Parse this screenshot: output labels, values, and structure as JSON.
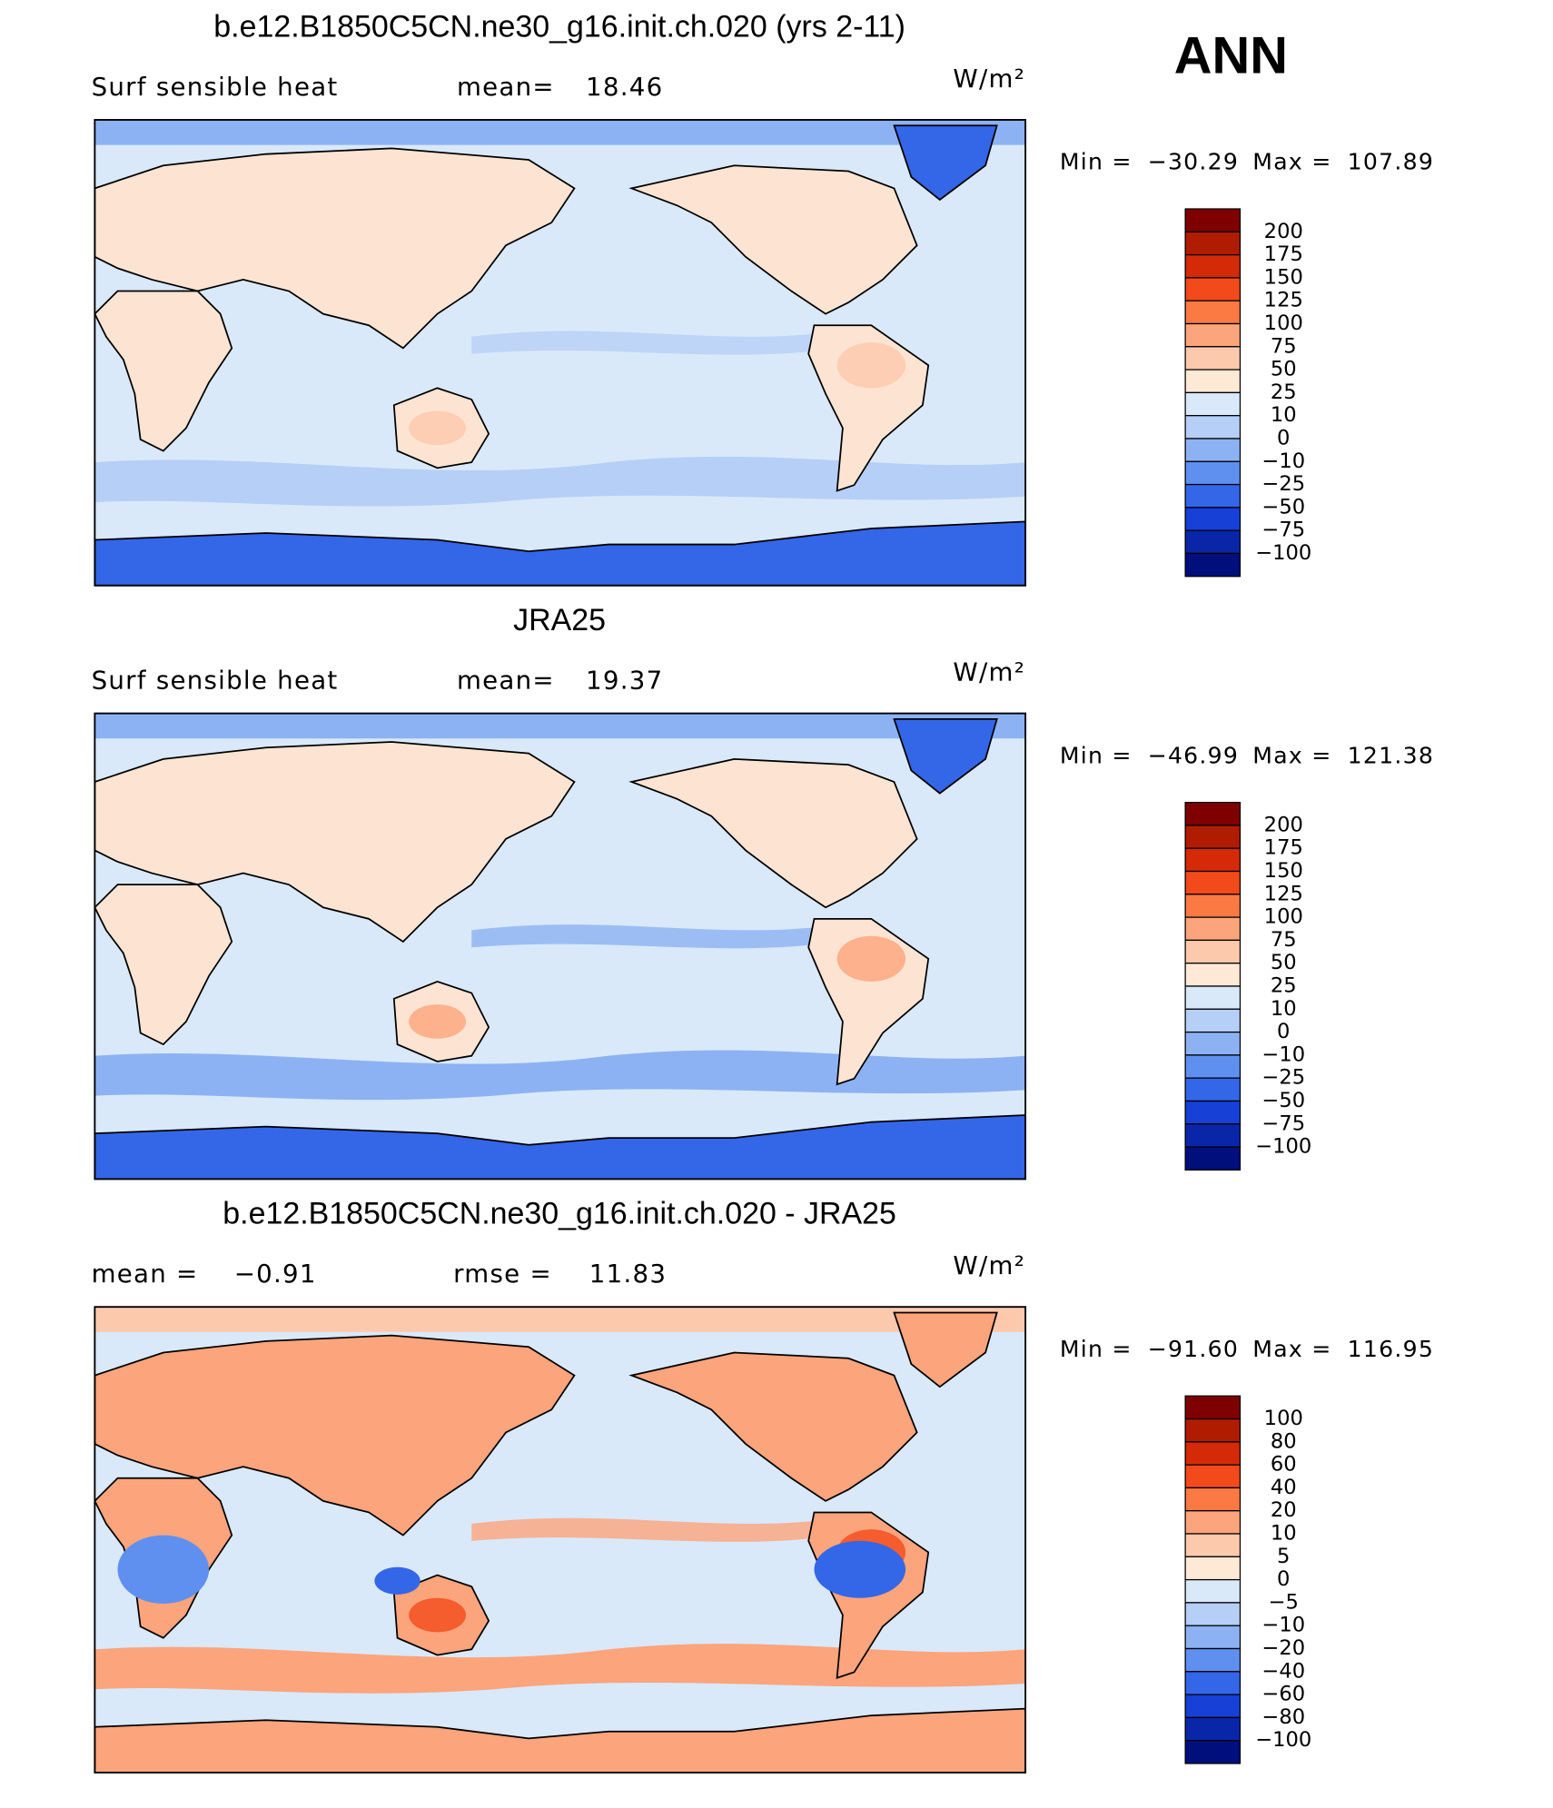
{
  "header": {
    "season": "ANN"
  },
  "panels": [
    {
      "title": "b.e12.B1850C5CN.ne30_g16.init.ch.020 (yrs 2-11)",
      "variable": "Surf sensible heat",
      "stats": [
        {
          "label": "mean=",
          "value": "18.46"
        }
      ],
      "units": "W/m²",
      "min_label": "Min =",
      "min": "−30.29",
      "max_label": "Max =",
      "max": "107.89",
      "colorbar": {
        "colors": [
          "#7f0000",
          "#b01c00",
          "#d42a08",
          "#f24a1a",
          "#fb7a44",
          "#fca47c",
          "#fdc9ad",
          "#fde9d6",
          "#d9e9fa",
          "#b6cff6",
          "#8cb2f3",
          "#5f90f0",
          "#3466e8",
          "#1640d6",
          "#0a26a8",
          "#000f7c"
        ],
        "labels": [
          "200",
          "175",
          "150",
          "125",
          "100",
          "75",
          "50",
          "25",
          "10",
          "0",
          "−10",
          "−25",
          "−50",
          "−75",
          "−100"
        ]
      }
    },
    {
      "title": "JRA25",
      "variable": "Surf sensible heat",
      "stats": [
        {
          "label": "mean=",
          "value": "19.37"
        }
      ],
      "units": "W/m²",
      "min_label": "Min =",
      "min": "−46.99",
      "max_label": "Max =",
      "max": "121.38",
      "colorbar": {
        "colors": [
          "#7f0000",
          "#b01c00",
          "#d42a08",
          "#f24a1a",
          "#fb7a44",
          "#fca47c",
          "#fdc9ad",
          "#fde9d6",
          "#d9e9fa",
          "#b6cff6",
          "#8cb2f3",
          "#5f90f0",
          "#3466e8",
          "#1640d6",
          "#0a26a8",
          "#000f7c"
        ],
        "labels": [
          "200",
          "175",
          "150",
          "125",
          "100",
          "75",
          "50",
          "25",
          "10",
          "0",
          "−10",
          "−25",
          "−50",
          "−75",
          "−100"
        ]
      }
    },
    {
      "title": "b.e12.B1850C5CN.ne30_g16.init.ch.020 - JRA25",
      "stats": [
        {
          "label": "mean =",
          "value": "−0.91"
        },
        {
          "label": "rmse =",
          "value": "11.83"
        }
      ],
      "units": "W/m²",
      "min_label": "Min =",
      "min": "−91.60",
      "max_label": "Max =",
      "max": "116.95",
      "colorbar": {
        "colors": [
          "#7f0000",
          "#b01c00",
          "#d42a08",
          "#f24a1a",
          "#fb7a44",
          "#fca47c",
          "#fdc9ad",
          "#fde9d6",
          "#d9e9fa",
          "#b6cff6",
          "#8cb2f3",
          "#5f90f0",
          "#3466e8",
          "#1640d6",
          "#0a26a8",
          "#000f7c"
        ],
        "labels": [
          "100",
          "80",
          "60",
          "40",
          "20",
          "10",
          "5",
          "0",
          "−5",
          "−10",
          "−20",
          "−40",
          "−60",
          "−80",
          "−100"
        ]
      }
    }
  ]
}
